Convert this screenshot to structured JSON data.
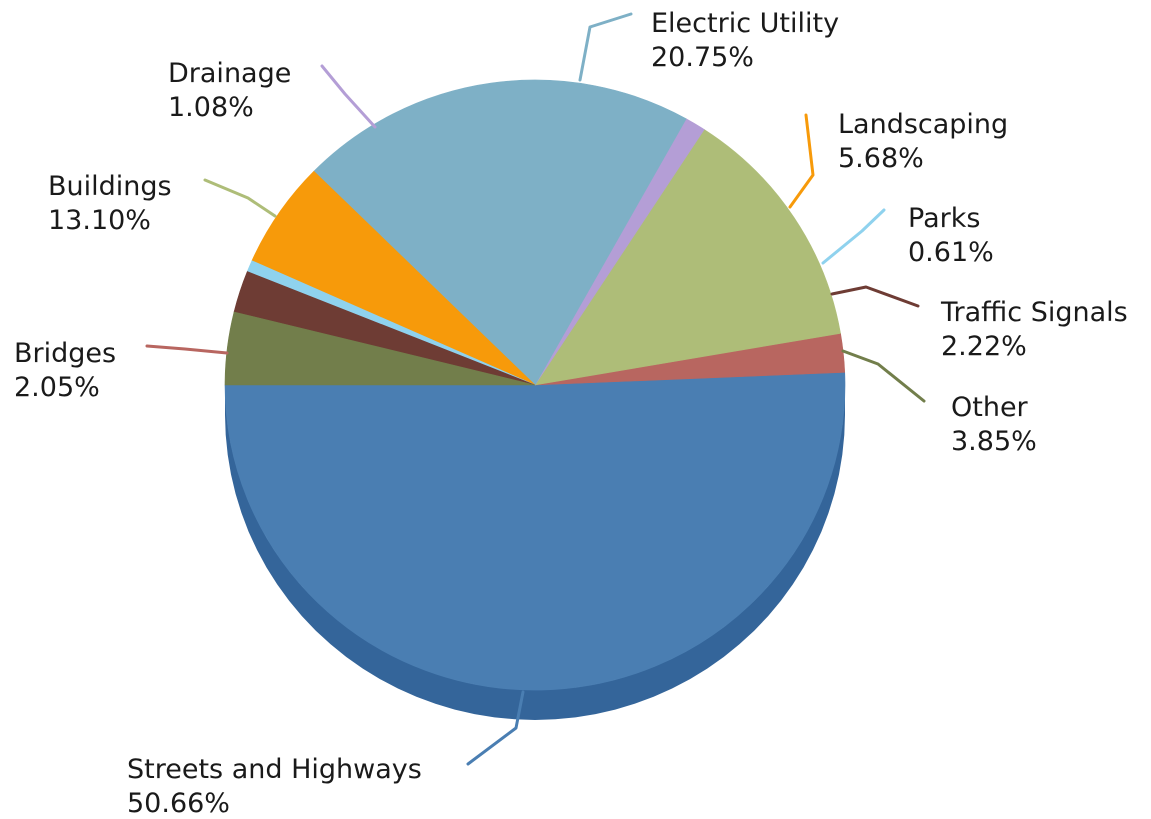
{
  "chart_data": {
    "type": "pie",
    "style": "3d-tilted",
    "legend": "none",
    "slices": [
      {
        "label": "Streets and Highways",
        "value_text": "50.66%",
        "value": 50.66,
        "color": "#4A7EB2",
        "side_color": "#34659A"
      },
      {
        "label": "Bridges",
        "value_text": "2.05%",
        "value": 2.05,
        "color": "#B86660",
        "side_color": "#98504B"
      },
      {
        "label": "Buildings",
        "value_text": "13.10%",
        "value": 13.1,
        "color": "#AEBD78",
        "side_color": "#8E9C5C"
      },
      {
        "label": "Drainage",
        "value_text": "1.08%",
        "value": 1.08,
        "color": "#B49ED6",
        "side_color": "#9580B8"
      },
      {
        "label": "Electric Utility",
        "value_text": "20.75%",
        "value": 20.75,
        "color": "#7EB0C6",
        "side_color": "#6090A8"
      },
      {
        "label": "Landscaping",
        "value_text": "5.68%",
        "value": 5.68,
        "color": "#F79A0A",
        "side_color": "#D07C00"
      },
      {
        "label": "Parks",
        "value_text": "0.61%",
        "value": 0.61,
        "color": "#8FD2EE",
        "side_color": "#6DB0CC"
      },
      {
        "label": "Traffic Signals",
        "value_text": "2.22%",
        "value": 2.22,
        "color": "#6E3C34",
        "side_color": "#552C26"
      },
      {
        "label": "Other",
        "value_text": "3.85%",
        "value": 3.85,
        "color": "#727E4B",
        "side_color": "#5A6438"
      }
    ]
  }
}
